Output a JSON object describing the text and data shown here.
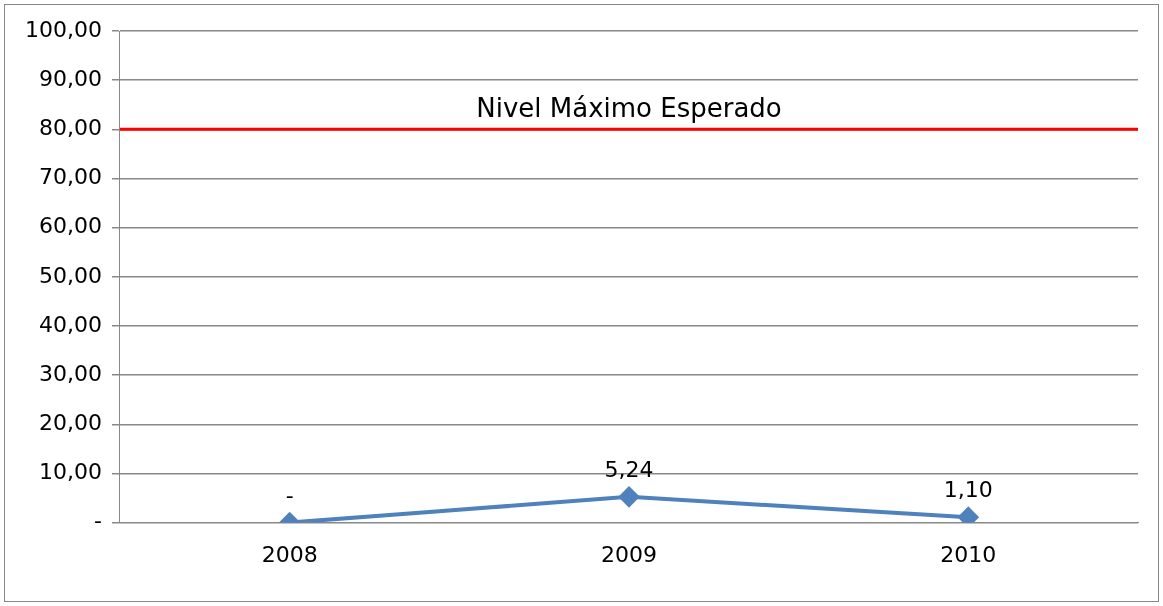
{
  "chart_data": {
    "type": "line",
    "categories": [
      "2008",
      "2009",
      "2010"
    ],
    "series": [
      {
        "color": "#4f81bd",
        "values": [
          0,
          5.24,
          1.1
        ],
        "value_labels": [
          "-",
          "5,24",
          "1,10"
        ]
      }
    ],
    "ylim": [
      0,
      100
    ],
    "yticks": [
      {
        "value": 0,
        "label": "-"
      },
      {
        "value": 10,
        "label": "10,00"
      },
      {
        "value": 20,
        "label": "20,00"
      },
      {
        "value": 30,
        "label": "30,00"
      },
      {
        "value": 40,
        "label": "40,00"
      },
      {
        "value": 50,
        "label": "50,00"
      },
      {
        "value": 60,
        "label": "60,00"
      },
      {
        "value": 70,
        "label": "70,00"
      },
      {
        "value": 80,
        "label": "80,00"
      },
      {
        "value": 90,
        "label": "90,00"
      },
      {
        "value": 100,
        "label": "100,00"
      }
    ],
    "ref_lines": [
      {
        "axis": "y",
        "value": 80,
        "label": "Nivel Máximo Esperado",
        "color": "#ff0000"
      }
    ],
    "grid": "y",
    "legend": false,
    "marker": "diamond",
    "line_style": "solid"
  }
}
